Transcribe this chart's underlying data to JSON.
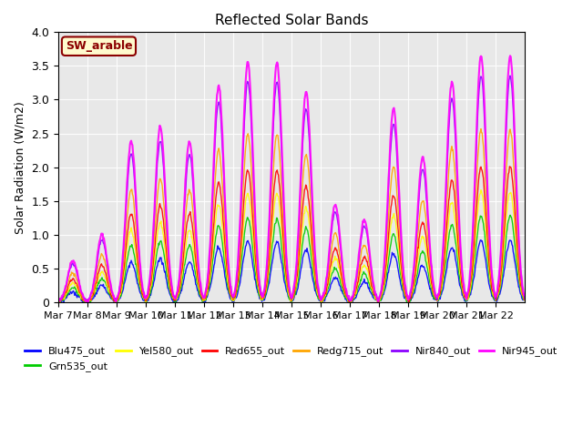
{
  "title": "Reflected Solar Bands",
  "ylabel": "Solar Radiation (W/m2)",
  "xlabel": "",
  "annotation": "SW_arable",
  "annotation_color": "#8B0000",
  "annotation_bg": "#FFFACD",
  "annotation_border": "#8B0000",
  "ylim": [
    0,
    4.0
  ],
  "yticks": [
    0.0,
    0.5,
    1.0,
    1.5,
    2.0,
    2.5,
    3.0,
    3.5,
    4.0
  ],
  "ytick_labels": [
    "0",
    "0.5",
    "1.0",
    "1.5",
    "2.0",
    "2.5",
    "3.0",
    "3.5",
    "4.0"
  ],
  "xticklabels": [
    "Mar 7",
    "Mar 8",
    "Mar 9",
    "Mar 10",
    "Mar 11",
    "Mar 12",
    "Mar 13",
    "Mar 14",
    "Mar 15",
    "Mar 16",
    "Mar 17",
    "Mar 18",
    "Mar 19",
    "Mar 20",
    "Mar 21",
    "Mar 22"
  ],
  "series": {
    "Blu475_out": {
      "color": "#0000FF",
      "lw": 1.0
    },
    "Grn535_out": {
      "color": "#00CC00",
      "lw": 1.0
    },
    "Yel580_out": {
      "color": "#FFFF00",
      "lw": 1.0
    },
    "Red655_out": {
      "color": "#FF0000",
      "lw": 1.0
    },
    "Redg715_out": {
      "color": "#FFA500",
      "lw": 1.0
    },
    "Nir840_out": {
      "color": "#8B00FF",
      "lw": 1.0
    },
    "Nir945_out": {
      "color": "#FF00FF",
      "lw": 1.5
    }
  },
  "series_order": [
    "Blu475_out",
    "Grn535_out",
    "Yel580_out",
    "Red655_out",
    "Redg715_out",
    "Nir840_out",
    "Nir945_out"
  ],
  "scales": {
    "Nir945_out": 1.0,
    "Nir840_out": 0.92,
    "Redg715_out": 0.7,
    "Red655_out": 0.55,
    "Yel580_out": 0.45,
    "Grn535_out": 0.35,
    "Blu475_out": 0.25
  },
  "day_peaks": [
    0.62,
    1.0,
    2.38,
    2.6,
    2.38,
    3.22,
    3.55,
    3.55,
    3.12,
    1.45,
    1.22,
    2.87,
    2.15,
    3.27,
    3.65,
    3.65
  ],
  "bg_color": "#E8E8E8",
  "fig_bg": "#FFFFFF",
  "n_days": 16,
  "pts_per_day": 48
}
